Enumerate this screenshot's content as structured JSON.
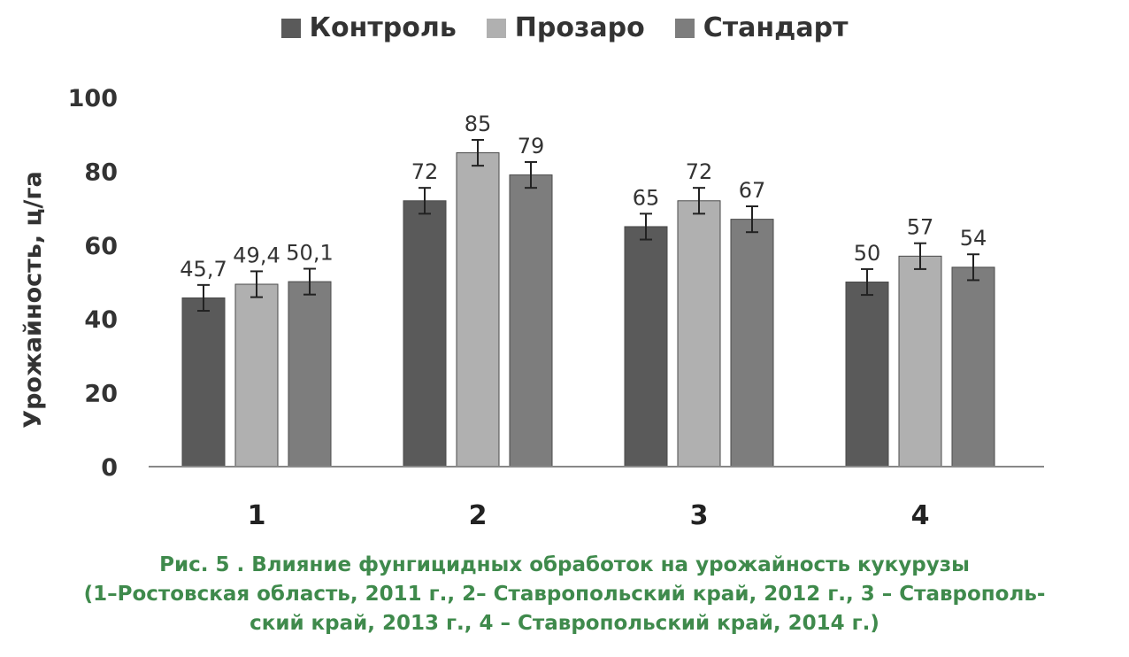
{
  "chart_data": {
    "type": "bar",
    "categories": [
      "1",
      "2",
      "3",
      "4"
    ],
    "series": [
      {
        "name": "Контроль",
        "values": [
          45.7,
          72,
          65,
          50
        ],
        "labels": [
          "45,7",
          "72",
          "65",
          "50"
        ],
        "color": "#5a5a5a"
      },
      {
        "name": "Прозаро",
        "values": [
          49.4,
          85,
          72,
          57
        ],
        "labels": [
          "49,4",
          "85",
          "72",
          "57"
        ],
        "color": "#b0b0b0"
      },
      {
        "name": "Стандарт",
        "values": [
          50.1,
          79,
          67,
          54
        ],
        "labels": [
          "50,1",
          "79",
          "67",
          "54"
        ],
        "color": "#7d7d7d"
      }
    ],
    "error_bars": true,
    "ylabel": "Урожайность, ц/га",
    "xlabel": "",
    "ylim": [
      0,
      100
    ],
    "yticks": [
      0,
      20,
      40,
      60,
      80,
      100
    ],
    "legend": "top-center",
    "grid": false
  },
  "caption": {
    "line1": "Рис. 5 . Влияние фунгицидных обработок на урожайность кукурузы",
    "line2": "(1–Ростовская область, 2011 г., 2– Ставропольский край, 2012 г., 3 – Ставрополь-",
    "line3": "ский край, 2013 г., 4 – Ставропольский край, 2014 г.)"
  }
}
